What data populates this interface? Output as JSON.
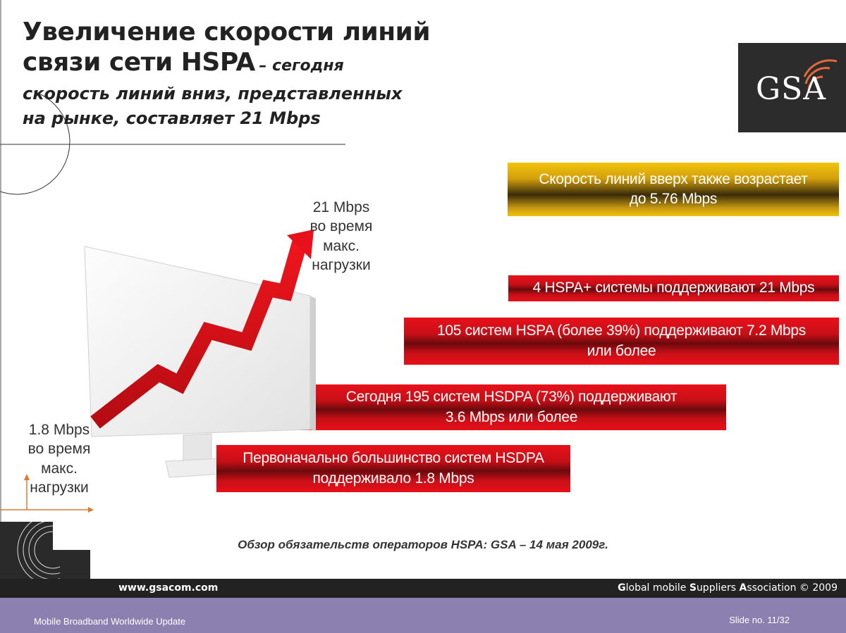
{
  "title": {
    "line1": "Увеличение скорости линий",
    "line2_main": "связи сети HSPA",
    "line2_sub": "– сегодня",
    "line3": "скорость линий вниз, представленных",
    "line4": "на рынке, составляет 21 Mbps"
  },
  "logo": {
    "text": "GSA"
  },
  "upload_box": {
    "line1": "Скорость линий вверх также возрастает",
    "line2": "до 5.76 Mbps"
  },
  "boxes": [
    {
      "line1": "4 HSPA+ системы поддерживают  21 Mbps"
    },
    {
      "line1": "105 систем HSPA (более 39%) поддерживают 7.2 Mbps",
      "line2": "или более"
    },
    {
      "line1": "Сегодня 195 систем HSDPA  (73%) поддерживают",
      "line2": "3.6 Mbps или более"
    },
    {
      "line1": "Первоначально большинство систем HSDPA",
      "line2": "поддерживало 1.8 Mbps"
    }
  ],
  "top_label": {
    "line1": "21 Mbps",
    "line2": "во время",
    "line3": "макс.",
    "line4": "нагрузки"
  },
  "bottom_label": {
    "line1": "1.8 Mbps",
    "line2": "во время",
    "line3": "макс.",
    "line4": "нагрузки"
  },
  "source": "Обзор обязательств операторов HSPA: GSA – 14 мая 2009г.",
  "footer": {
    "website": "www.gsacom.com",
    "org_g": "G",
    "org_part1": "lobal mobile ",
    "org_s": "S",
    "org_part2": "uppliers ",
    "org_a": "A",
    "org_part3": "ssociation © 2009",
    "presentation": "Mobile Broadband Worldwide Update",
    "slide": "Slide no. 11/32"
  },
  "colors": {
    "red": "#e8101a",
    "gold": "#f2c40c",
    "footer_dark": "#222222",
    "footer_purple": "#8b80b0"
  }
}
